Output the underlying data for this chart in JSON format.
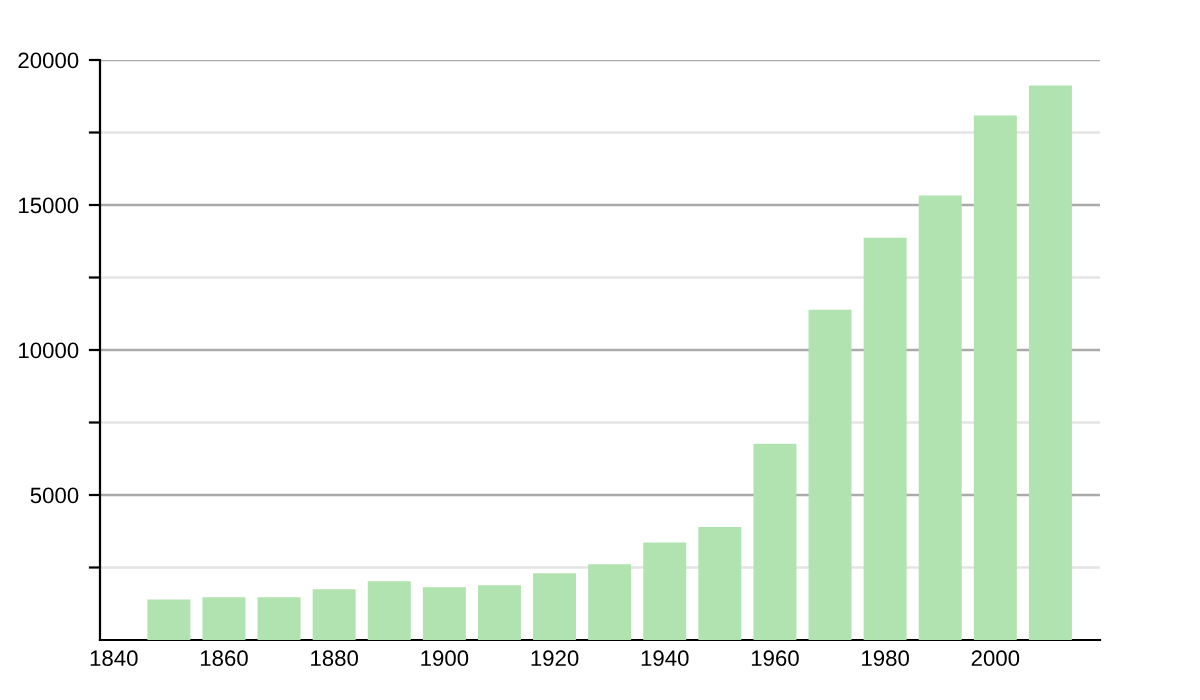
{
  "chart_data": {
    "type": "bar",
    "x": [
      1850,
      1860,
      1870,
      1880,
      1890,
      1900,
      1910,
      1920,
      1930,
      1940,
      1950,
      1960,
      1970,
      1980,
      1990,
      2000,
      2010
    ],
    "values": [
      1400,
      1470,
      1470,
      1750,
      2030,
      1820,
      1890,
      2300,
      2610,
      3360,
      3900,
      6770,
      11390,
      13870,
      15330,
      18090,
      19120
    ],
    "color": "#b0e3b0",
    "xlim": [
      1837.5,
      2019
    ],
    "xticks": [
      1840,
      1860,
      1880,
      1900,
      1920,
      1940,
      1960,
      1980,
      2000
    ],
    "ylim": [
      0,
      20000
    ],
    "yticks": [
      {
        "value": 2500,
        "label": null
      },
      5000,
      {
        "value": 7500,
        "label": null
      },
      10000,
      {
        "value": 12500,
        "label": null
      },
      15000,
      {
        "value": 17500,
        "label": null
      },
      20000
    ],
    "grid": "y"
  }
}
